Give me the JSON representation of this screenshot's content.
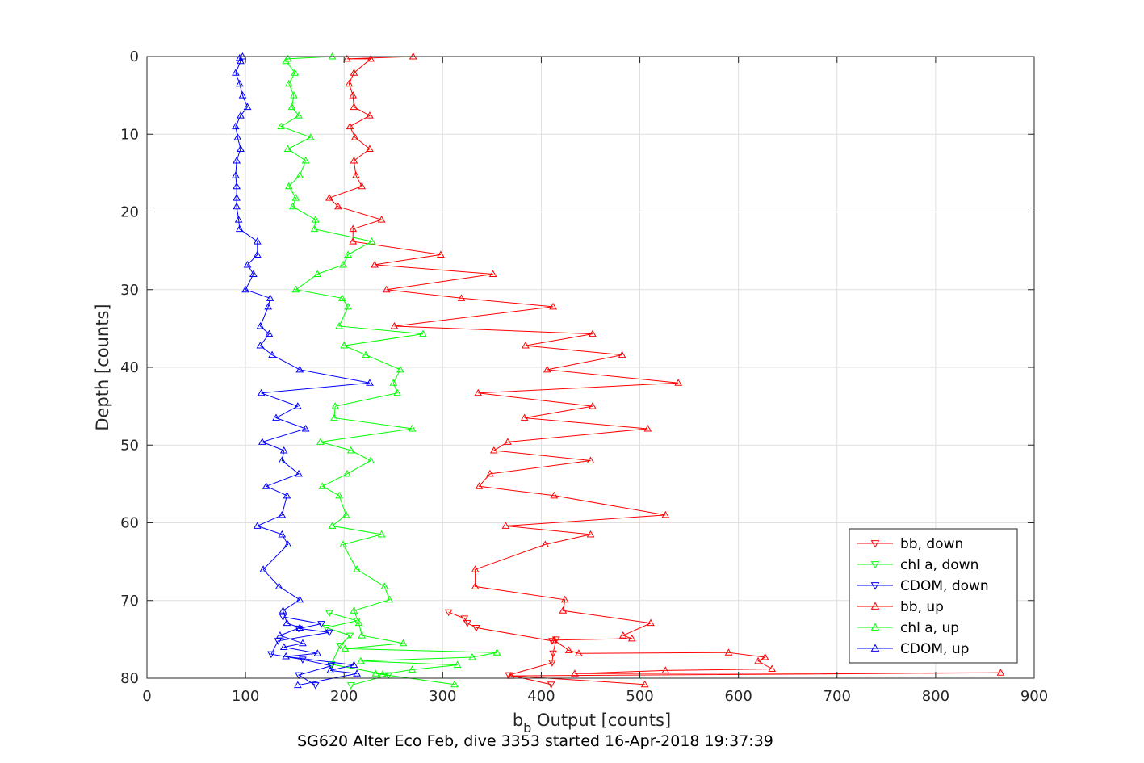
{
  "chart_data": {
    "type": "line",
    "caption": "SG620 Alter Eco Feb, dive 3353 started 16-Apr-2018 19:37:39",
    "xlabel_main": "b",
    "xlabel_sub": "b",
    "xlabel_rest": " Output [counts]",
    "ylabel": "Depth [counts]",
    "xlim": [
      0,
      900
    ],
    "ylim": [
      0,
      80
    ],
    "y_reversed": true,
    "grid": true,
    "xticks": [
      0,
      100,
      200,
      300,
      400,
      500,
      600,
      700,
      800,
      900
    ],
    "yticks": [
      0,
      10,
      20,
      30,
      40,
      50,
      60,
      70,
      80
    ],
    "legend_position": "bottom-right",
    "colors": {
      "red": "#ff0000",
      "green": "#00ff00",
      "blue": "#0000ff"
    },
    "series": [
      {
        "name": "bb, down",
        "color": "#ff0000",
        "marker": "triangle-down",
        "points": [
          [
            306,
            71.5
          ],
          [
            322,
            72.3
          ],
          [
            325,
            72.9
          ],
          [
            334,
            73.5
          ],
          [
            411,
            75.2
          ],
          [
            415,
            75.0
          ],
          [
            412,
            76.8
          ],
          [
            411,
            78.0
          ],
          [
            367,
            79.6
          ],
          [
            410,
            80.8
          ]
        ]
      },
      {
        "name": "chl a, down",
        "color": "#00ff00",
        "marker": "triangle-down",
        "points": [
          [
            185,
            71.6
          ],
          [
            213,
            72.6
          ],
          [
            182,
            73.5
          ],
          [
            206,
            74.5
          ],
          [
            196,
            75.8
          ],
          [
            187,
            78.2
          ],
          [
            245,
            79.6
          ],
          [
            207,
            80.9
          ]
        ]
      },
      {
        "name": "CDOM, down",
        "color": "#0000ff",
        "marker": "triangle-down",
        "points": [
          [
            138,
            72.1
          ],
          [
            177,
            73.0
          ],
          [
            154,
            73.6
          ],
          [
            185,
            74.1
          ],
          [
            133,
            75.2
          ],
          [
            126,
            76.9
          ],
          [
            158,
            77.6
          ],
          [
            187,
            78.4
          ],
          [
            154,
            79.6
          ],
          [
            171,
            80.9
          ]
        ]
      },
      {
        "name": "bb, up",
        "color": "#ff0000",
        "marker": "triangle-up",
        "points": [
          [
            270,
            0
          ],
          [
            203,
            0.3
          ],
          [
            227,
            0.3
          ],
          [
            210,
            2.1
          ],
          [
            205,
            3.5
          ],
          [
            209,
            5.0
          ],
          [
            210,
            6.5
          ],
          [
            226,
            7.6
          ],
          [
            206,
            9.0
          ],
          [
            211,
            10.4
          ],
          [
            226,
            11.9
          ],
          [
            210,
            13.4
          ],
          [
            212,
            15.3
          ],
          [
            218,
            16.7
          ],
          [
            185,
            18.2
          ],
          [
            194,
            19.3
          ],
          [
            238,
            21.0
          ],
          [
            209,
            22.2
          ],
          [
            209,
            23.8
          ],
          [
            298,
            25.5
          ],
          [
            231,
            26.8
          ],
          [
            351,
            28.0
          ],
          [
            243,
            30.0
          ],
          [
            319,
            31.1
          ],
          [
            412,
            32.2
          ],
          [
            251,
            34.7
          ],
          [
            452,
            35.7
          ],
          [
            384,
            37.2
          ],
          [
            482,
            38.4
          ],
          [
            406,
            40.3
          ],
          [
            539,
            42.0
          ],
          [
            336,
            43.3
          ],
          [
            452,
            45.0
          ],
          [
            383,
            46.5
          ],
          [
            508,
            47.9
          ],
          [
            366,
            49.6
          ],
          [
            352,
            50.7
          ],
          [
            450,
            52.0
          ],
          [
            348,
            53.7
          ],
          [
            337,
            55.3
          ],
          [
            413,
            56.5
          ],
          [
            526,
            59.0
          ],
          [
            364,
            60.4
          ],
          [
            450,
            61.5
          ],
          [
            404,
            62.8
          ],
          [
            333,
            66.0
          ],
          [
            333,
            68.2
          ],
          [
            424,
            69.9
          ],
          [
            422,
            71.3
          ],
          [
            511,
            72.9
          ],
          [
            483,
            74.5
          ],
          [
            492,
            74.9
          ],
          [
            413,
            75.1
          ],
          [
            428,
            76.4
          ],
          [
            438,
            76.8
          ],
          [
            590,
            76.7
          ],
          [
            627,
            77.3
          ],
          [
            620,
            77.8
          ],
          [
            634,
            78.8
          ],
          [
            526,
            79.0
          ],
          [
            434,
            79.4
          ],
          [
            866,
            79.3
          ],
          [
            369,
            79.7
          ],
          [
            505,
            80.8
          ]
        ]
      },
      {
        "name": "chl a, up",
        "color": "#00ff00",
        "marker": "triangle-up",
        "points": [
          [
            188,
            0
          ],
          [
            143,
            0.3
          ],
          [
            141,
            0.6
          ],
          [
            150,
            2.1
          ],
          [
            144,
            3.5
          ],
          [
            149,
            5.0
          ],
          [
            147,
            6.5
          ],
          [
            154,
            7.6
          ],
          [
            136,
            9.0
          ],
          [
            166,
            10.4
          ],
          [
            143,
            11.9
          ],
          [
            161,
            13.4
          ],
          [
            155,
            15.3
          ],
          [
            144,
            16.7
          ],
          [
            151,
            18.2
          ],
          [
            148,
            19.3
          ],
          [
            171,
            21.0
          ],
          [
            170,
            22.2
          ],
          [
            228,
            23.8
          ],
          [
            204,
            25.5
          ],
          [
            199,
            26.8
          ],
          [
            173,
            28.0
          ],
          [
            151,
            30.0
          ],
          [
            198,
            31.1
          ],
          [
            204,
            32.2
          ],
          [
            195,
            34.7
          ],
          [
            280,
            35.7
          ],
          [
            200,
            37.2
          ],
          [
            222,
            38.4
          ],
          [
            257,
            40.3
          ],
          [
            250,
            42.0
          ],
          [
            254,
            43.3
          ],
          [
            191,
            45.0
          ],
          [
            190,
            46.5
          ],
          [
            269,
            47.9
          ],
          [
            176,
            49.6
          ],
          [
            207,
            50.7
          ],
          [
            227,
            52.0
          ],
          [
            203,
            53.7
          ],
          [
            178,
            55.3
          ],
          [
            195,
            56.5
          ],
          [
            202,
            59.0
          ],
          [
            188,
            60.4
          ],
          [
            238,
            61.5
          ],
          [
            199,
            62.8
          ],
          [
            213,
            66.0
          ],
          [
            241,
            68.2
          ],
          [
            246,
            69.9
          ],
          [
            210,
            71.3
          ],
          [
            215,
            72.9
          ],
          [
            218,
            74.5
          ],
          [
            260,
            75.5
          ],
          [
            201,
            76.2
          ],
          [
            355,
            76.7
          ],
          [
            330,
            77.3
          ],
          [
            217,
            77.8
          ],
          [
            315,
            78.3
          ],
          [
            269,
            78.9
          ],
          [
            239,
            79.5
          ],
          [
            232,
            79.4
          ],
          [
            312,
            80.8
          ]
        ]
      },
      {
        "name": "CDOM, up",
        "color": "#0000ff",
        "marker": "triangle-up",
        "points": [
          [
            97,
            0
          ],
          [
            94,
            0.2
          ],
          [
            95,
            0.6
          ],
          [
            90,
            2.1
          ],
          [
            94,
            3.5
          ],
          [
            97,
            5.0
          ],
          [
            102,
            6.5
          ],
          [
            95,
            7.6
          ],
          [
            90,
            9.0
          ],
          [
            92,
            10.4
          ],
          [
            95,
            11.9
          ],
          [
            91,
            13.4
          ],
          [
            90,
            15.3
          ],
          [
            91,
            16.7
          ],
          [
            91,
            18.2
          ],
          [
            91,
            19.3
          ],
          [
            93,
            21.0
          ],
          [
            94,
            22.2
          ],
          [
            112,
            23.8
          ],
          [
            112,
            25.5
          ],
          [
            102,
            26.8
          ],
          [
            108,
            28.0
          ],
          [
            100,
            30.0
          ],
          [
            125,
            31.1
          ],
          [
            123,
            32.2
          ],
          [
            115,
            34.7
          ],
          [
            124,
            35.7
          ],
          [
            115,
            37.2
          ],
          [
            127,
            38.4
          ],
          [
            155,
            40.3
          ],
          [
            226,
            42.0
          ],
          [
            116,
            43.3
          ],
          [
            153,
            45.0
          ],
          [
            131,
            46.5
          ],
          [
            161,
            47.9
          ],
          [
            117,
            49.6
          ],
          [
            139,
            50.7
          ],
          [
            137,
            52.0
          ],
          [
            154,
            53.7
          ],
          [
            121,
            55.3
          ],
          [
            142,
            56.5
          ],
          [
            137,
            59.0
          ],
          [
            112,
            60.4
          ],
          [
            137,
            61.5
          ],
          [
            143,
            62.8
          ],
          [
            118,
            66.0
          ],
          [
            134,
            68.2
          ],
          [
            155,
            69.9
          ],
          [
            138,
            71.3
          ],
          [
            142,
            72.9
          ],
          [
            155,
            73.5
          ],
          [
            135,
            74.5
          ],
          [
            158,
            75.5
          ],
          [
            139,
            76.0
          ],
          [
            173,
            76.8
          ],
          [
            141,
            77.2
          ],
          [
            210,
            78.3
          ],
          [
            186,
            79.0
          ],
          [
            213,
            79.4
          ],
          [
            153,
            80.9
          ]
        ]
      }
    ]
  }
}
